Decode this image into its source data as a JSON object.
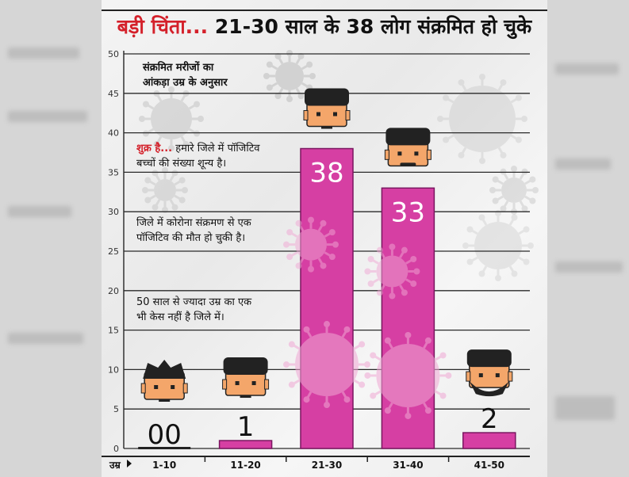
{
  "title": {
    "highlight": "बड़ी चिंता...",
    "text": "21-30 साल के 38 लोग संक्रमित हो चुके"
  },
  "notes": {
    "heading": "संक्रमित मरीजों का\nआंकड़ा उम्र के अनुसार",
    "good_news_highlight": "शुक्र है...",
    "good_news_text": " हमारे जिले में पॉजिटिव\nबच्चों की संख्या शून्य है।",
    "death_note": "जिले में कोरोना संक्रमण से एक\nपॉजिटिव की मौत हो चुकी है।",
    "elder_note": "50 साल से ज्यादा उम्र का एक\nभी केस नहीं है जिले में।"
  },
  "chart_data": {
    "type": "bar",
    "xlabel": "उम्र",
    "ylabel": "",
    "categories": [
      "1-10",
      "11-20",
      "21-30",
      "31-40",
      "41-50"
    ],
    "values": [
      0,
      1,
      38,
      33,
      2
    ],
    "value_labels": [
      "00",
      "1",
      "38",
      "33",
      "2"
    ],
    "yticks": [
      0,
      5,
      10,
      15,
      20,
      25,
      30,
      35,
      40,
      45,
      50
    ],
    "ylim": [
      0,
      50
    ],
    "grid": true,
    "legend": "none",
    "bar_color": "#d63fa3",
    "label_color_inside": "#ffffff",
    "label_color_outside": "#111111"
  }
}
